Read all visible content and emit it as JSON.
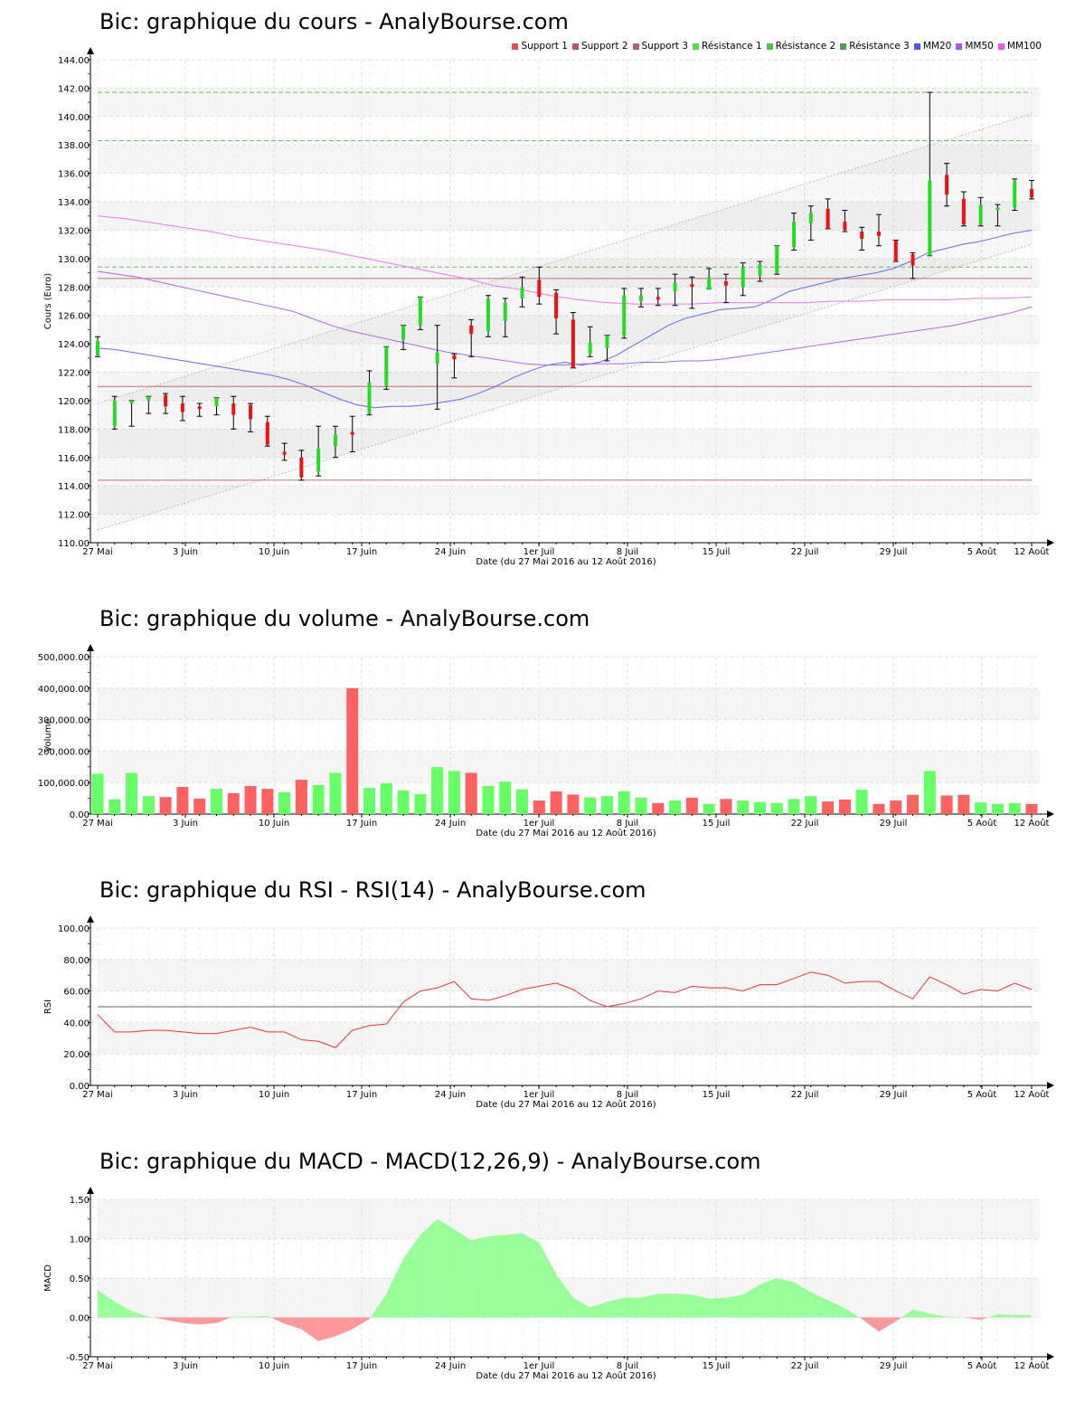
{
  "colors": {
    "up": "#22dd22",
    "down": "#ee1111",
    "vol_up": "#66ff66",
    "vol_down": "#ff6060",
    "support": "#c07070",
    "resistance": "#66bb66",
    "mm20": "#6666ee",
    "mm50": "#aa66ee",
    "mm100": "#ee77ee",
    "rsi": "#ee3333",
    "macd_pos": "#99ff99",
    "macd_neg": "#ff9999"
  },
  "x_ticks": [
    "27 Mai",
    "3 Juin",
    "10 Juin",
    "17 Juin",
    "24 Juin",
    "1er Juil",
    "8 Juil",
    "15 Juil",
    "22 Juil",
    "29 Juil",
    "5 Août",
    "12 Août"
  ],
  "x_label": "Date (du 27 Mai 2016 au 12 Août 2016)",
  "price": {
    "title": "Bic: graphique du cours - AnalyBourse.com",
    "ylabel": "Cours (Euro)",
    "legend": [
      {
        "label": "Support 1",
        "color": "#dd5555"
      },
      {
        "label": "Support 2",
        "color": "#bb5555"
      },
      {
        "label": "Support 3",
        "color": "#aa6666"
      },
      {
        "label": "Résistance 1",
        "color": "#55dd55"
      },
      {
        "label": "Résistance 2",
        "color": "#55bb55"
      },
      {
        "label": "Résistance 3",
        "color": "#559955"
      },
      {
        "label": "MM20",
        "color": "#5555ee"
      },
      {
        "label": "MM50",
        "color": "#aa55ee"
      },
      {
        "label": "MM100",
        "color": "#ee55ee"
      }
    ],
    "y_ticks": [
      "144.00",
      "142.00",
      "140.00",
      "138.00",
      "136.00",
      "134.00",
      "132.00",
      "130.00",
      "128.00",
      "126.00",
      "124.00",
      "122.00",
      "120.00",
      "118.00",
      "116.00",
      "114.00",
      "112.00",
      "110.00"
    ]
  },
  "volume": {
    "title": "Bic: graphique du volume - AnalyBourse.com",
    "ylabel": "Volume",
    "y_ticks": [
      "500,000.00",
      "400,000.00",
      "300,000.00",
      "200,000.00",
      "100,000.00",
      "0.00"
    ]
  },
  "rsi": {
    "title": "Bic: graphique du RSI - RSI(14) - AnalyBourse.com",
    "ylabel": "RSI",
    "y_ticks": [
      "100.00",
      "80.00",
      "60.00",
      "40.00",
      "20.00",
      "0.00"
    ]
  },
  "macd": {
    "title": "Bic: graphique du MACD - MACD(12,26,9) - AnalyBourse.com",
    "ylabel": "MACD",
    "y_ticks": [
      "1.50",
      "1.00",
      "0.50",
      "0.00",
      "-0.50"
    ]
  },
  "chart_data": [
    {
      "type": "candlestick",
      "title": "Bic: graphique du cours - AnalyBourse.com",
      "xlabel": "Date (du 27 Mai 2016 au 12 Août 2016)",
      "ylabel": "Cours (Euro)",
      "ylim": [
        110,
        144
      ],
      "x": [
        "27/05",
        "30/05",
        "31/05",
        "01/06",
        "02/06",
        "03/06",
        "06/06",
        "07/06",
        "08/06",
        "09/06",
        "10/06",
        "13/06",
        "14/06",
        "15/06",
        "16/06",
        "17/06",
        "20/06",
        "21/06",
        "22/06",
        "23/06",
        "24/06",
        "27/06",
        "28/06",
        "29/06",
        "30/06",
        "01/07",
        "04/07",
        "05/07",
        "06/07",
        "07/07",
        "08/07",
        "11/07",
        "12/07",
        "13/07",
        "14/07",
        "15/07",
        "18/07",
        "19/07",
        "20/07",
        "21/07",
        "22/07",
        "25/07",
        "26/07",
        "27/07",
        "28/07",
        "29/07",
        "01/08",
        "02/08",
        "03/08",
        "04/08",
        "05/08",
        "08/08",
        "09/08",
        "10/08",
        "11/08",
        "12/08"
      ],
      "ohlc": [
        [
          123.2,
          124.5,
          123.1,
          124.2
        ],
        [
          118.2,
          120.3,
          118.0,
          120.0
        ],
        [
          119.8,
          120.0,
          118.2,
          120.0
        ],
        [
          120.0,
          120.3,
          119.1,
          120.3
        ],
        [
          120.4,
          120.5,
          119.1,
          119.6
        ],
        [
          119.8,
          120.3,
          118.6,
          119.2
        ],
        [
          119.6,
          119.8,
          118.9,
          119.5
        ],
        [
          119.6,
          120.2,
          119.0,
          120.2
        ],
        [
          119.8,
          120.3,
          118.0,
          119.0
        ],
        [
          119.7,
          119.8,
          117.8,
          118.7
        ],
        [
          118.5,
          118.9,
          116.8,
          116.9
        ],
        [
          116.4,
          117.0,
          115.8,
          116.2
        ],
        [
          116.0,
          116.5,
          114.4,
          114.6
        ],
        [
          115.0,
          118.2,
          114.7,
          116.6
        ],
        [
          116.8,
          118.2,
          116.0,
          117.6
        ],
        [
          117.8,
          118.9,
          116.4,
          117.6
        ],
        [
          119.1,
          122.1,
          119.0,
          121.3
        ],
        [
          121.0,
          123.8,
          120.8,
          123.8
        ],
        [
          124.3,
          125.3,
          123.6,
          125.3
        ],
        [
          125.3,
          127.3,
          125.0,
          127.3
        ],
        [
          122.6,
          125.3,
          119.4,
          123.4
        ],
        [
          123.2,
          123.3,
          121.6,
          122.9
        ],
        [
          125.3,
          125.7,
          123.1,
          124.7
        ],
        [
          124.9,
          127.4,
          124.5,
          127.2
        ],
        [
          125.6,
          127.2,
          124.5,
          126.9
        ],
        [
          127.2,
          128.7,
          126.6,
          128.0
        ],
        [
          128.5,
          129.4,
          126.8,
          127.3
        ],
        [
          127.6,
          127.8,
          124.7,
          125.8
        ],
        [
          125.7,
          126.2,
          122.3,
          122.3
        ],
        [
          123.3,
          125.2,
          123.1,
          124.1
        ],
        [
          123.7,
          124.6,
          122.8,
          124.6
        ],
        [
          124.6,
          127.9,
          124.4,
          127.4
        ],
        [
          127.0,
          127.9,
          126.6,
          127.4
        ],
        [
          127.3,
          127.9,
          126.7,
          127.2
        ],
        [
          127.7,
          128.9,
          126.7,
          128.3
        ],
        [
          128.2,
          128.7,
          126.5,
          128.1
        ],
        [
          127.8,
          129.3,
          127.9,
          128.7
        ],
        [
          128.4,
          128.9,
          126.9,
          128.1
        ],
        [
          128.0,
          129.7,
          127.4,
          129.4
        ],
        [
          128.8,
          129.8,
          128.4,
          129.6
        ],
        [
          129.0,
          130.9,
          128.9,
          130.9
        ],
        [
          130.8,
          133.2,
          130.6,
          132.6
        ],
        [
          132.5,
          133.7,
          131.3,
          133.2
        ],
        [
          133.5,
          134.2,
          132.1,
          132.1
        ],
        [
          132.6,
          133.4,
          131.9,
          132.0
        ],
        [
          131.9,
          132.2,
          130.6,
          131.4
        ],
        [
          131.9,
          133.1,
          130.9,
          131.6
        ],
        [
          131.3,
          131.3,
          129.8,
          129.8
        ],
        [
          130.3,
          130.4,
          128.6,
          129.5
        ],
        [
          130.2,
          141.7,
          130.2,
          135.5
        ],
        [
          135.9,
          136.7,
          133.7,
          134.5
        ],
        [
          134.2,
          134.7,
          132.3,
          132.4
        ],
        [
          132.4,
          134.3,
          132.3,
          133.8
        ],
        [
          133.4,
          133.8,
          132.3,
          133.6
        ],
        [
          133.6,
          135.6,
          133.4,
          135.5
        ],
        [
          134.9,
          135.5,
          134.2,
          134.3
        ]
      ],
      "support_lines": [
        {
          "name": "Support 1",
          "value": 128.6
        },
        {
          "name": "Support 2",
          "value": 121.0
        },
        {
          "name": "Support 3",
          "value": 114.4
        }
      ],
      "resistance_lines": [
        {
          "name": "Résistance 1",
          "value": 129.4
        },
        {
          "name": "Résistance 2",
          "value": 138.3
        },
        {
          "name": "Résistance 3",
          "value": 141.7
        }
      ],
      "series": [
        {
          "name": "MM20",
          "values": [
            123.7,
            123.6,
            123.4,
            123.2,
            123.0,
            122.8,
            122.6,
            122.4,
            122.2,
            122.0,
            121.8,
            121.5,
            121.1,
            120.6,
            120.1,
            119.7,
            119.5,
            119.6,
            119.6,
            119.7,
            119.9,
            120.1,
            120.5,
            121.0,
            121.6,
            122.1,
            122.5,
            122.7,
            122.5,
            122.7,
            123.2,
            123.9,
            124.6,
            125.3,
            125.8,
            126.1,
            126.4,
            126.5,
            126.6,
            127.1,
            127.7,
            128.0,
            128.3,
            128.6,
            128.8,
            129.0,
            129.3,
            129.8,
            130.4,
            130.7,
            131.0,
            131.2,
            131.5,
            131.8,
            132.0
          ]
        },
        {
          "name": "MM50",
          "values": [
            129.1,
            128.9,
            128.7,
            128.4,
            128.1,
            127.8,
            127.5,
            127.2,
            126.9,
            126.6,
            126.3,
            125.8,
            125.3,
            124.9,
            124.6,
            124.3,
            124.0,
            123.7,
            123.4,
            123.2,
            123.0,
            122.8,
            122.6,
            122.5,
            122.5,
            122.6,
            122.6,
            122.6,
            122.7,
            122.7,
            122.8,
            122.8,
            122.9,
            123.1,
            123.3,
            123.5,
            123.7,
            123.9,
            124.1,
            124.3,
            124.5,
            124.7,
            124.9,
            125.1,
            125.3,
            125.6,
            125.9,
            126.2,
            126.6
          ]
        },
        {
          "name": "MM100",
          "values": [
            133.0,
            132.8,
            132.5,
            132.2,
            131.9,
            131.5,
            131.2,
            130.9,
            130.6,
            130.2,
            129.8,
            129.4,
            129.0,
            128.6,
            128.1,
            127.8,
            127.4,
            127.1,
            126.9,
            126.8,
            126.8,
            126.8,
            126.9,
            126.9,
            126.9,
            126.9,
            127.0,
            127.0,
            127.1,
            127.1,
            127.1,
            127.2,
            127.2,
            127.3
          ]
        }
      ],
      "trend_channel": {
        "upper": [
          [
            0,
            119.8
          ],
          [
            55,
            140.2
          ]
        ],
        "lower": [
          [
            0,
            110.9
          ],
          [
            55,
            131.0
          ]
        ]
      }
    },
    {
      "type": "bar",
      "title": "Bic: graphique du volume - AnalyBourse.com",
      "xlabel": "Date (du 27 Mai 2016 au 12 Août 2016)",
      "ylabel": "Volume",
      "ylim": [
        0,
        500000
      ],
      "values": [
        128000,
        47000,
        131000,
        57000,
        54000,
        86000,
        49000,
        80000,
        66000,
        89000,
        80000,
        69000,
        109000,
        92000,
        131000,
        400000,
        83000,
        98000,
        75000,
        63000,
        149000,
        137000,
        131000,
        89000,
        103000,
        78000,
        43000,
        72000,
        62000,
        53000,
        57000,
        72000,
        52000,
        35000,
        43000,
        52000,
        32000,
        48000,
        43000,
        38000,
        35000,
        48000,
        57000,
        40000,
        46000,
        77000,
        32000,
        43000,
        61000,
        137000,
        59000,
        61000,
        37000,
        32000,
        35000,
        32000
      ],
      "up": [
        true,
        true,
        true,
        true,
        false,
        false,
        false,
        true,
        false,
        false,
        false,
        true,
        false,
        true,
        true,
        false,
        true,
        true,
        true,
        true,
        true,
        true,
        false,
        true,
        true,
        true,
        false,
        false,
        false,
        true,
        true,
        true,
        true,
        false,
        true,
        false,
        true,
        false,
        true,
        true,
        true,
        true,
        true,
        false,
        false,
        true,
        false,
        false,
        false,
        true,
        false,
        false,
        true,
        true,
        true,
        false
      ]
    },
    {
      "type": "line",
      "title": "Bic: graphique du RSI - RSI(14) - AnalyBourse.com",
      "xlabel": "Date (du 27 Mai 2016 au 12 Août 2016)",
      "ylabel": "RSI",
      "ylim": [
        0,
        100
      ],
      "reference_line": 50,
      "values": [
        45,
        34,
        34,
        35,
        35,
        34,
        33,
        33,
        35,
        37,
        34,
        34,
        29,
        28,
        24,
        35,
        38,
        39,
        53,
        60,
        62,
        66,
        55,
        54,
        57,
        61,
        63,
        65,
        61,
        54,
        50,
        52,
        55,
        60,
        59,
        63,
        62,
        62,
        60,
        64,
        64,
        68,
        72,
        70,
        65,
        66,
        66,
        60,
        55,
        69,
        64,
        58,
        61,
        60,
        65,
        61
      ]
    },
    {
      "type": "area",
      "title": "Bic: graphique du MACD - MACD(12,26,9) - AnalyBourse.com",
      "xlabel": "Date (du 27 Mai 2016 au 12 Août 2016)",
      "ylabel": "MACD",
      "ylim": [
        -0.5,
        1.5
      ],
      "values": [
        0.35,
        0.2,
        0.08,
        0.01,
        -0.03,
        -0.07,
        -0.09,
        -0.07,
        0.01,
        0.01,
        0.02,
        -0.08,
        -0.15,
        -0.3,
        -0.24,
        -0.15,
        -0.02,
        0.3,
        0.75,
        1.05,
        1.25,
        1.12,
        0.98,
        1.03,
        1.05,
        1.07,
        0.95,
        0.55,
        0.25,
        0.13,
        0.2,
        0.25,
        0.25,
        0.3,
        0.3,
        0.29,
        0.24,
        0.25,
        0.29,
        0.42,
        0.5,
        0.45,
        0.32,
        0.22,
        0.12,
        -0.02,
        -0.18,
        -0.05,
        0.1,
        0.05,
        0.01,
        0.0,
        -0.03,
        0.04,
        0.03,
        0.03
      ]
    }
  ]
}
